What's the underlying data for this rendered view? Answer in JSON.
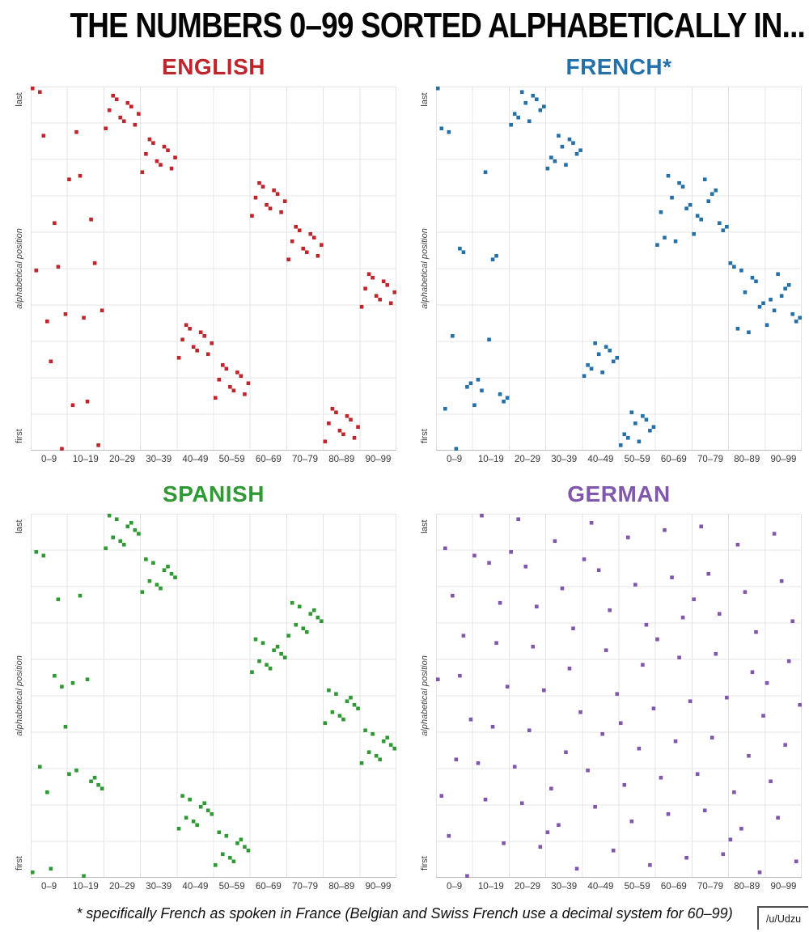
{
  "title": "THE NUMBERS 0–99 SORTED ALPHABETICALLY IN...",
  "footnote": "* specifically French as spoken in France (Belgian and Swiss French use a decimal system for 60–99)",
  "credit": "/u/Udzu",
  "style": {
    "grid_color": "#e4e4e4",
    "axis_color": "#bfbfbf",
    "title_color": "#050505"
  },
  "axis": {
    "x_tick_labels": [
      "0–9",
      "10–19",
      "20–29",
      "30–39",
      "40–49",
      "50–59",
      "60–69",
      "70–79",
      "80–89",
      "90–99"
    ],
    "y_top_label": "last",
    "y_axis_label": "alphabetical position",
    "y_bottom_label": "first"
  },
  "chart_data": [
    {
      "type": "scatter",
      "language": "ENGLISH",
      "color": "#c0252b",
      "xlim": [
        0,
        99
      ],
      "ylim": [
        1,
        100
      ],
      "note": "positions[n] = alphabetical rank of number n among 0–99 (1 = first, 100 = last)",
      "positions": [
        100,
        50,
        99,
        87,
        36,
        25,
        63,
        51,
        1,
        38,
        75,
        13,
        88,
        76,
        37,
        14,
        64,
        52,
        2,
        39,
        89,
        94,
        98,
        97,
        92,
        91,
        96,
        95,
        90,
        93,
        77,
        82,
        86,
        85,
        80,
        79,
        84,
        83,
        78,
        81,
        26,
        31,
        35,
        34,
        29,
        28,
        33,
        32,
        27,
        30,
        15,
        20,
        24,
        23,
        18,
        17,
        22,
        21,
        16,
        19,
        65,
        70,
        74,
        73,
        68,
        67,
        72,
        71,
        66,
        69,
        53,
        58,
        62,
        61,
        56,
        55,
        60,
        59,
        54,
        57,
        3,
        8,
        12,
        11,
        6,
        5,
        10,
        9,
        4,
        7,
        40,
        45,
        49,
        48,
        43,
        42,
        47,
        46,
        41,
        44
      ]
    },
    {
      "type": "scatter",
      "language": "FRENCH*",
      "color": "#2470a8",
      "xlim": [
        0,
        99
      ],
      "ylim": [
        1,
        100
      ],
      "note": "positions[n] = alphabetical rank of number n among 0–99 (1 = first, 100 = last)",
      "positions": [
        100,
        89,
        12,
        88,
        32,
        1,
        56,
        55,
        18,
        19,
        13,
        20,
        17,
        77,
        31,
        53,
        54,
        16,
        14,
        15,
        90,
        93,
        92,
        99,
        96,
        91,
        98,
        97,
        94,
        95,
        78,
        81,
        80,
        87,
        84,
        79,
        86,
        85,
        82,
        83,
        21,
        24,
        23,
        30,
        27,
        22,
        29,
        28,
        25,
        26,
        2,
        5,
        4,
        11,
        8,
        3,
        10,
        9,
        6,
        7,
        57,
        66,
        59,
        76,
        70,
        58,
        74,
        73,
        67,
        68,
        60,
        65,
        64,
        75,
        69,
        71,
        72,
        63,
        61,
        62,
        52,
        51,
        34,
        50,
        44,
        33,
        48,
        47,
        40,
        41,
        35,
        42,
        39,
        49,
        43,
        45,
        46,
        38,
        36,
        37
      ]
    },
    {
      "type": "scatter",
      "language": "SPANISH",
      "color": "#2f9a34",
      "xlim": [
        0,
        99
      ],
      "ylim": [
        1,
        100
      ],
      "note": "positions[n] = alphabetical rank of number n among 0–99 (1 = first, 100 = last)",
      "positions": [
        2,
        90,
        31,
        89,
        24,
        3,
        56,
        77,
        53,
        42,
        29,
        54,
        30,
        78,
        1,
        55,
        27,
        28,
        26,
        25,
        91,
        100,
        94,
        99,
        93,
        92,
        97,
        98,
        96,
        95,
        79,
        88,
        82,
        87,
        81,
        80,
        85,
        86,
        84,
        83,
        14,
        23,
        17,
        22,
        16,
        15,
        20,
        21,
        19,
        18,
        4,
        13,
        7,
        12,
        6,
        5,
        10,
        11,
        9,
        8,
        57,
        66,
        60,
        65,
        59,
        58,
        63,
        64,
        62,
        61,
        67,
        76,
        70,
        75,
        69,
        68,
        73,
        74,
        72,
        71,
        43,
        52,
        46,
        51,
        45,
        44,
        49,
        50,
        48,
        47,
        32,
        41,
        35,
        40,
        34,
        33,
        38,
        39,
        37,
        36
      ]
    },
    {
      "type": "scatter",
      "language": "GERMAN",
      "color": "#8157ad",
      "xlim": [
        0,
        99
      ],
      "ylim": [
        1,
        100
      ],
      "note": "positions[n] = alphabetical rank of number n among 0–99 (1 = first, 100 = last)",
      "positions": [
        55,
        23,
        91,
        12,
        78,
        33,
        56,
        67,
        1,
        44,
        89,
        32,
        100,
        22,
        87,
        42,
        65,
        76,
        10,
        53,
        90,
        31,
        99,
        21,
        86,
        41,
        64,
        75,
        9,
        52,
        13,
        25,
        93,
        15,
        80,
        35,
        58,
        69,
        3,
        46,
        88,
        30,
        98,
        20,
        85,
        40,
        63,
        74,
        8,
        51,
        43,
        26,
        94,
        16,
        81,
        36,
        59,
        70,
        4,
        47,
        66,
        28,
        96,
        18,
        83,
        38,
        61,
        72,
        6,
        49,
        77,
        29,
        97,
        19,
        84,
        39,
        62,
        73,
        7,
        50,
        11,
        24,
        92,
        14,
        79,
        34,
        57,
        68,
        2,
        45,
        54,
        27,
        95,
        17,
        82,
        37,
        60,
        71,
        5,
        48
      ]
    }
  ]
}
